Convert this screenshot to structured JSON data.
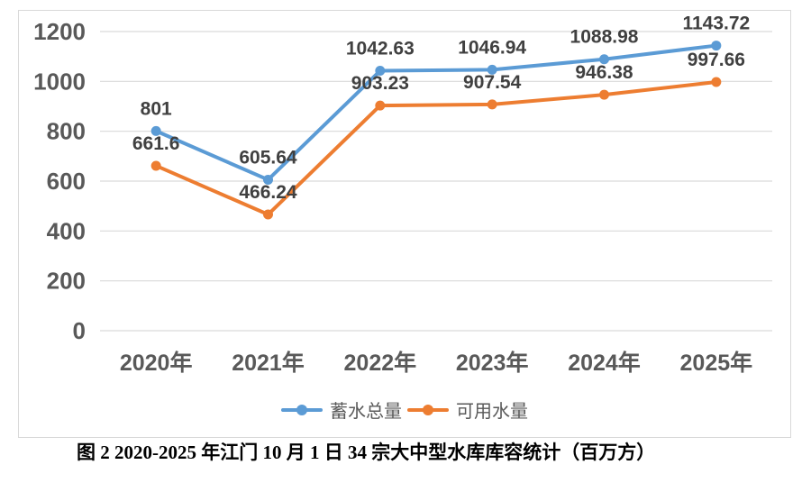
{
  "chart_data": {
    "type": "line",
    "title": "",
    "xlabel": "",
    "ylabel": "",
    "categories": [
      "2020年",
      "2021年",
      "2022年",
      "2023年",
      "2024年",
      "2025年"
    ],
    "series": [
      {
        "name": "蓄水总量",
        "color": "#5B9BD5",
        "values": [
          801,
          605.64,
          1042.63,
          1046.94,
          1088.98,
          1143.72
        ]
      },
      {
        "name": "可用水量",
        "color": "#ED7D31",
        "values": [
          661.6,
          466.24,
          903.23,
          907.54,
          946.38,
          997.66
        ]
      }
    ],
    "ylim": [
      0,
      1200
    ],
    "yticks": [
      0,
      200,
      400,
      600,
      800,
      1000,
      1200
    ],
    "grid": true,
    "data_labels": true,
    "legend_position": "bottom"
  },
  "caption": "图 2 2020-2025 年江门 10 月 1 日 34 宗大中型水库库容统计（百万方）",
  "colors": {
    "grid": "#D9D9D9",
    "frame_border": "#D9D9D9",
    "tick_text": "#595959",
    "data_label_text": "#404040",
    "legend_text": "#595959",
    "caption_text": "#000000",
    "background": "#FFFFFF"
  }
}
